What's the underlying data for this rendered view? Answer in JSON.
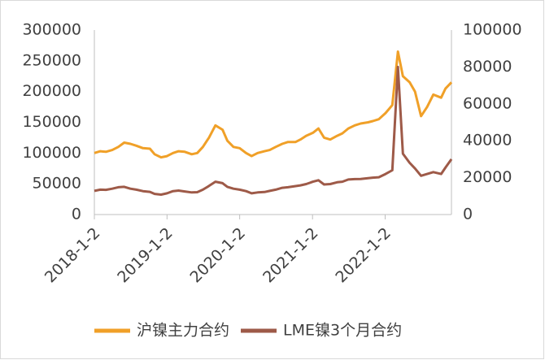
{
  "chart_data": {
    "type": "line",
    "x": [
      "2018-1-2",
      "2018-2-1",
      "2018-3-1",
      "2018-4-2",
      "2018-5-2",
      "2018-6-1",
      "2018-7-2",
      "2018-8-1",
      "2018-9-3",
      "2018-10-8",
      "2018-11-1",
      "2018-12-3",
      "2019-1-2",
      "2019-2-1",
      "2019-3-1",
      "2019-4-1",
      "2019-5-6",
      "2019-6-3",
      "2019-7-1",
      "2019-8-1",
      "2019-9-2",
      "2019-10-8",
      "2019-11-1",
      "2019-12-2",
      "2020-1-2",
      "2020-2-3",
      "2020-3-2",
      "2020-4-1",
      "2020-5-6",
      "2020-6-1",
      "2020-7-1",
      "2020-8-3",
      "2020-9-1",
      "2020-10-9",
      "2020-11-2",
      "2020-12-1",
      "2021-1-4",
      "2021-2-1",
      "2021-3-1",
      "2021-4-1",
      "2021-5-6",
      "2021-6-1",
      "2021-7-1",
      "2021-8-2",
      "2021-9-1",
      "2021-10-8",
      "2021-11-1",
      "2021-12-1",
      "2022-1-4",
      "2022-2-7",
      "2022-3-7",
      "2022-4-1",
      "2022-5-5",
      "2022-6-1",
      "2022-7-1",
      "2022-8-1",
      "2022-9-1",
      "2022-10-10",
      "2022-11-1",
      "2022-12-1"
    ],
    "xticks": [
      "2018-1-2",
      "2019-1-2",
      "2020-1-2",
      "2021-1-2",
      "2022-1-2"
    ],
    "series": [
      {
        "name": "沪镍主力合约",
        "color": "#f0a028",
        "values": [
          100000,
          103000,
          102000,
          105000,
          110000,
          117000,
          115000,
          112000,
          108000,
          107000,
          98000,
          93000,
          95000,
          100000,
          103000,
          102000,
          98000,
          100000,
          110000,
          125000,
          145000,
          138000,
          120000,
          110000,
          108000,
          100000,
          95000,
          100000,
          103000,
          105000,
          110000,
          115000,
          118000,
          118000,
          122000,
          128000,
          133000,
          140000,
          125000,
          122000,
          128000,
          132000,
          140000,
          145000,
          148000,
          150000,
          152000,
          155000,
          165000,
          178000,
          265000,
          225000,
          215000,
          200000,
          160000,
          175000,
          195000,
          190000,
          205000,
          215000
        ]
      },
      {
        "name": "LME镍3个月合约",
        "color": "#9e5a48",
        "axis": "y2",
        "values": [
          12800,
          13500,
          13400,
          14000,
          14800,
          15000,
          14000,
          13500,
          12700,
          12300,
          11200,
          10800,
          11500,
          12700,
          13000,
          12500,
          12000,
          12100,
          13500,
          15500,
          17800,
          17000,
          15000,
          14000,
          13500,
          12700,
          11500,
          12000,
          12200,
          12800,
          13500,
          14500,
          14800,
          15400,
          15800,
          16500,
          17800,
          18600,
          16300,
          16500,
          17500,
          17800,
          19000,
          19200,
          19300,
          19700,
          20000,
          20200,
          22000,
          24000,
          80000,
          33000,
          28000,
          25000,
          21000,
          22000,
          23000,
          22000,
          25500,
          30000
        ]
      }
    ],
    "ylim": [
      0,
      300000
    ],
    "yticks": [
      0,
      50000,
      100000,
      150000,
      200000,
      250000,
      300000
    ],
    "y2lim": [
      0,
      100000
    ],
    "y2ticks": [
      0,
      20000,
      40000,
      60000,
      80000,
      100000
    ],
    "legend": "bottom"
  }
}
